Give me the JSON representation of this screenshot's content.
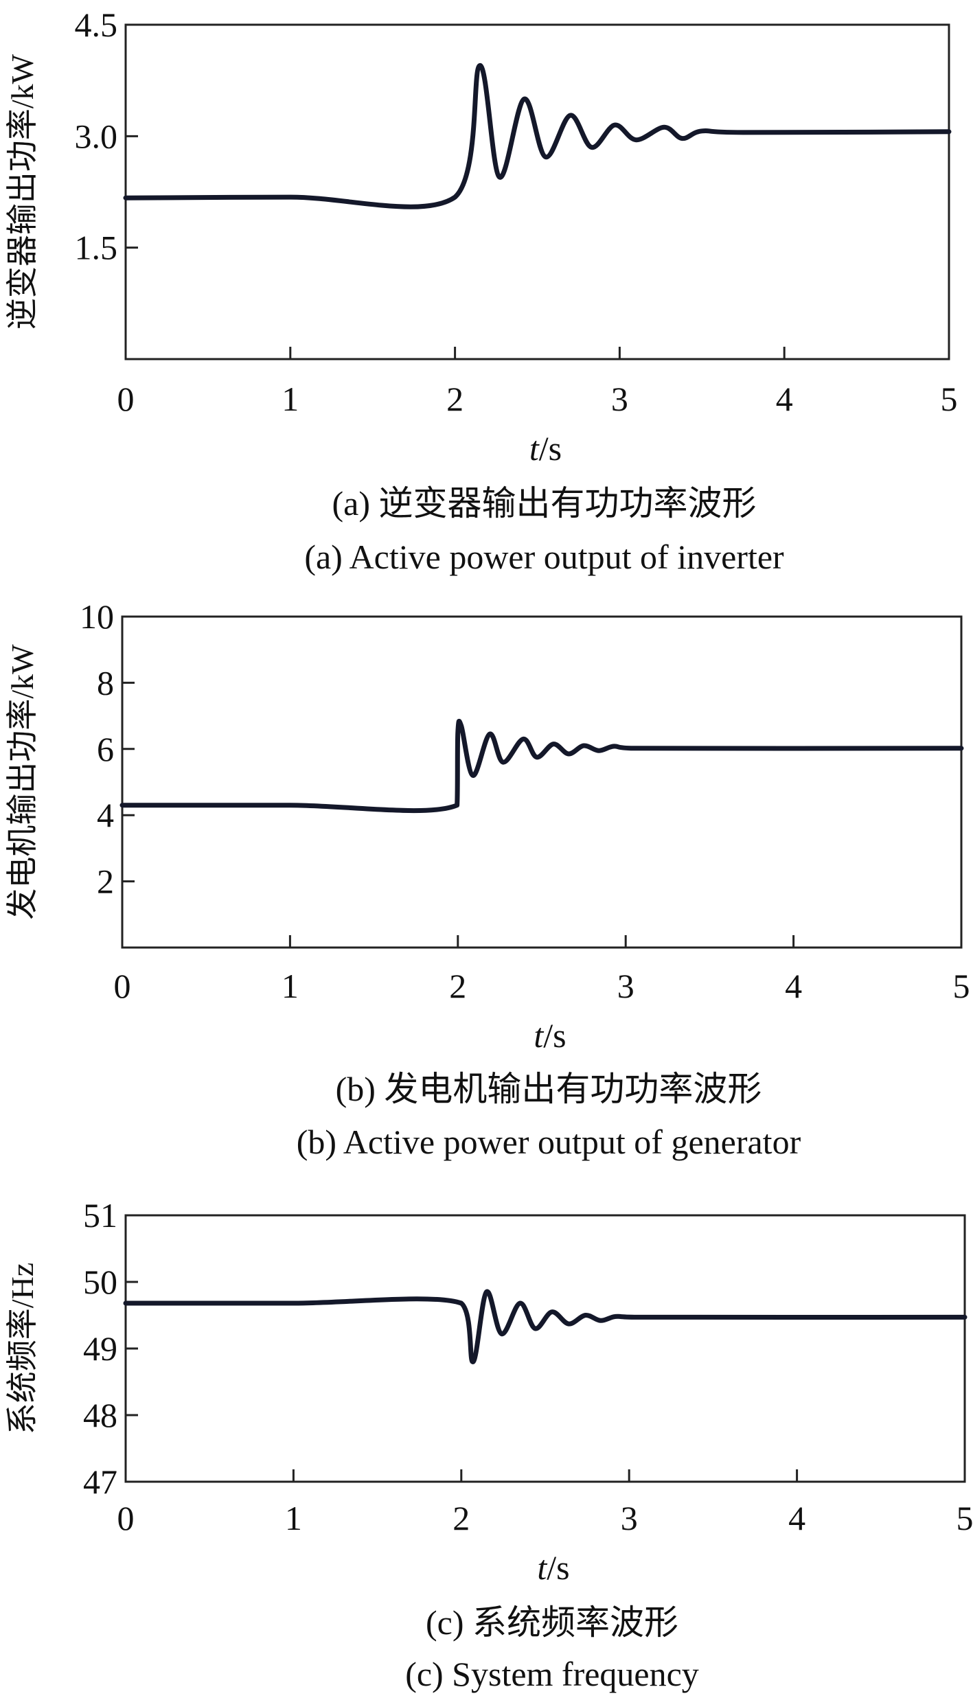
{
  "chart_data": [
    {
      "type": "line",
      "ylabel": "逆变器输出功率/kW",
      "xlabel_var": "t",
      "xlabel_unit": "/s",
      "xlim": [
        0,
        5
      ],
      "ylim": [
        0,
        4.5
      ],
      "x_ticks": [
        "0",
        "1",
        "2",
        "3",
        "4",
        "5"
      ],
      "y_ticks": [
        {
          "value": 1.5,
          "label": "1.5"
        },
        {
          "value": 3.0,
          "label": "3.0"
        },
        {
          "value": 4.5,
          "label": "4.5"
        }
      ],
      "series": [
        {
          "x": [
            0,
            1.0,
            2.0,
            2.15,
            2.27,
            2.42,
            2.55,
            2.7,
            2.83,
            2.97,
            3.1,
            3.27,
            3.38,
            3.5,
            3.75,
            5.0
          ],
          "y": [
            2.17,
            2.18,
            2.18,
            3.95,
            2.45,
            3.5,
            2.72,
            3.28,
            2.85,
            3.15,
            2.95,
            3.12,
            2.97,
            3.07,
            3.05,
            3.06
          ]
        }
      ],
      "caption_cn": "(a) 逆变器输出有功功率波形",
      "caption_en": "(a) Active power output of inverter"
    },
    {
      "type": "line",
      "ylabel": "发电机输出功率/kW",
      "xlabel_var": "t",
      "xlabel_unit": "/s",
      "xlim": [
        0,
        5
      ],
      "ylim": [
        0,
        10
      ],
      "x_ticks": [
        "0",
        "1",
        "2",
        "3",
        "4",
        "5"
      ],
      "y_ticks": [
        {
          "value": 2,
          "label": "2"
        },
        {
          "value": 4,
          "label": "4"
        },
        {
          "value": 6,
          "label": "6"
        },
        {
          "value": 8,
          "label": "8"
        },
        {
          "value": 10,
          "label": "10"
        }
      ],
      "series": [
        {
          "x": [
            0,
            1.0,
            1.995,
            2.0,
            2.02,
            2.09,
            2.19,
            2.27,
            2.39,
            2.47,
            2.57,
            2.66,
            2.75,
            2.84,
            2.93,
            3.05,
            5.0
          ],
          "y": [
            4.3,
            4.3,
            4.3,
            6.5,
            6.7,
            5.2,
            6.45,
            5.6,
            6.3,
            5.75,
            6.15,
            5.85,
            6.1,
            5.95,
            6.08,
            6.02,
            6.02
          ]
        }
      ],
      "caption_cn": "(b) 发电机输出有功功率波形",
      "caption_en": "(b) Active power output of generator"
    },
    {
      "type": "line",
      "ylabel": "系统频率/Hz",
      "xlabel_var": "t",
      "xlabel_unit": "/s",
      "xlim": [
        0,
        5
      ],
      "ylim": [
        47,
        51
      ],
      "x_ticks": [
        "0",
        "1",
        "2",
        "3",
        "4",
        "5"
      ],
      "y_ticks": [
        {
          "value": 47,
          "label": "47"
        },
        {
          "value": 48,
          "label": "48"
        },
        {
          "value": 49,
          "label": "49"
        },
        {
          "value": 50,
          "label": "50"
        },
        {
          "value": 51,
          "label": "51"
        }
      ],
      "series": [
        {
          "x": [
            0,
            1.0,
            2.0,
            2.07,
            2.15,
            2.24,
            2.35,
            2.44,
            2.54,
            2.64,
            2.74,
            2.83,
            2.92,
            3.05,
            5.0
          ],
          "y": [
            49.68,
            49.68,
            49.68,
            48.8,
            49.85,
            49.22,
            49.68,
            49.3,
            49.55,
            49.37,
            49.5,
            49.42,
            49.48,
            49.47,
            49.47
          ]
        }
      ],
      "caption_cn": "(c) 系统频率波形",
      "caption_en": "(c) System frequency"
    }
  ]
}
